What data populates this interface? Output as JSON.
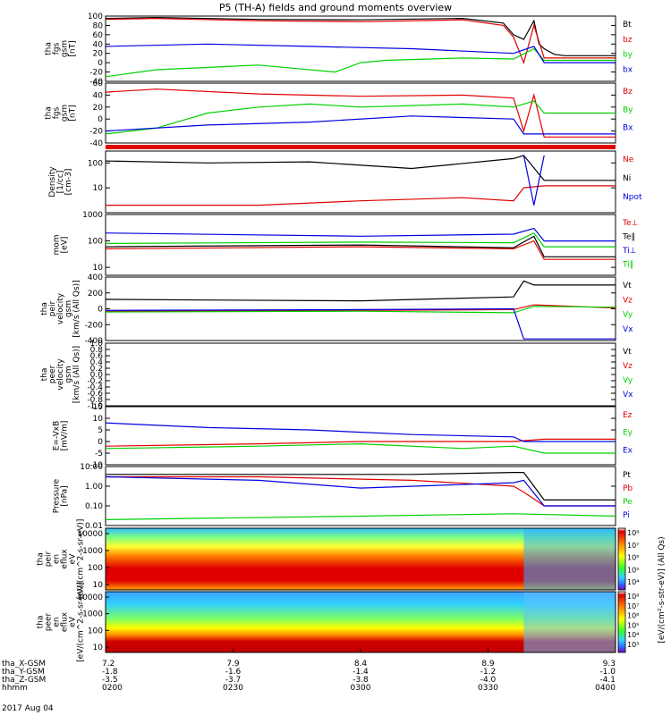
{
  "title": "P5 (TH-A) fields and ground moments overview",
  "date_label": "2017 Aug 04",
  "ephemeris": {
    "rows": [
      {
        "label": "tha_X-GSM",
        "values": [
          "7.2",
          "7.9",
          "8.4",
          "8.9",
          "9.3"
        ]
      },
      {
        "label": "tha_Y-GSM",
        "values": [
          "-1.8",
          "-1.6",
          "-1.4",
          "-1.2",
          "-1.0"
        ]
      },
      {
        "label": "tha_Z-GSM",
        "values": [
          "-3.5",
          "-3.7",
          "-3.8",
          "-4.0",
          "-4.1"
        ]
      },
      {
        "label": "hhmm",
        "values": [
          "0200",
          "0230",
          "0300",
          "0330",
          "0400"
        ]
      }
    ]
  },
  "colors": {
    "black": "#000000",
    "red": "#e00000",
    "green": "#00d000",
    "blue": "#0000e0"
  },
  "colorbar": {
    "label": "[eV/(cm^2-s-str-eV)] (All Qs)",
    "upper_ticks": [
      "10^8",
      "10^7",
      "10^6",
      "10^5",
      "10^4"
    ],
    "lower_ticks": [
      "10^8",
      "10^7",
      "10^6",
      "10^5",
      "10^4",
      "10^3"
    ]
  },
  "chart_data": [
    {
      "type": "line",
      "id": "fgs_gsm",
      "ylabel": [
        "tha",
        "fgs",
        "gsm",
        "[nT]"
      ],
      "ylim": [
        -40,
        100
      ],
      "yticks": [
        "100",
        "80",
        "60",
        "40",
        "20",
        "0",
        "-20",
        "-40"
      ],
      "series": [
        {
          "name": "Bt",
          "color": "black",
          "x": [
            0,
            0.1,
            0.3,
            0.5,
            0.7,
            0.78,
            0.8,
            0.82,
            0.84,
            0.85,
            0.86,
            0.88,
            0.9,
            1
          ],
          "y": [
            95,
            97,
            93,
            92,
            95,
            85,
            60,
            50,
            90,
            40,
            30,
            18,
            15,
            15
          ]
        },
        {
          "name": "bz",
          "color": "red",
          "x": [
            0,
            0.1,
            0.3,
            0.5,
            0.7,
            0.78,
            0.8,
            0.82,
            0.84,
            0.86,
            1
          ],
          "y": [
            93,
            95,
            90,
            88,
            92,
            80,
            55,
            0,
            80,
            10,
            10
          ]
        },
        {
          "name": "by",
          "color": "green",
          "x": [
            0,
            0.1,
            0.3,
            0.45,
            0.5,
            0.55,
            0.7,
            0.8,
            0.84,
            0.86,
            1
          ],
          "y": [
            -30,
            -15,
            -5,
            -20,
            0,
            5,
            10,
            8,
            30,
            5,
            5
          ]
        },
        {
          "name": "bx",
          "color": "blue",
          "x": [
            0,
            0.2,
            0.4,
            0.6,
            0.8,
            0.84,
            0.86,
            1
          ],
          "y": [
            35,
            40,
            35,
            30,
            20,
            35,
            0,
            0
          ]
        }
      ]
    },
    {
      "type": "line",
      "id": "fgs_gsm2",
      "ylabel": [
        "tha",
        "fgs",
        "gsm",
        "[nT]"
      ],
      "ylim": [
        -40,
        60
      ],
      "yticks": [
        "60",
        "40",
        "20",
        "0",
        "-20",
        "-40"
      ],
      "series": [
        {
          "name": "Bz",
          "color": "red",
          "x": [
            0,
            0.1,
            0.3,
            0.5,
            0.7,
            0.8,
            0.82,
            0.84,
            0.86,
            1
          ],
          "y": [
            45,
            50,
            42,
            38,
            40,
            35,
            -20,
            40,
            -30,
            -30
          ]
        },
        {
          "name": "By",
          "color": "green",
          "x": [
            0,
            0.1,
            0.2,
            0.3,
            0.4,
            0.5,
            0.7,
            0.8,
            0.84,
            0.86,
            1
          ],
          "y": [
            -25,
            -15,
            10,
            20,
            25,
            20,
            25,
            20,
            30,
            10,
            10
          ]
        },
        {
          "name": "Bx",
          "color": "blue",
          "x": [
            0,
            0.2,
            0.4,
            0.6,
            0.8,
            0.82,
            0.86,
            1
          ],
          "y": [
            -20,
            -10,
            -5,
            5,
            0,
            -25,
            -25,
            -25
          ]
        }
      ]
    },
    {
      "type": "line",
      "id": "density",
      "ylabel": [
        "Density",
        "[1/cc]",
        "[cm-3]"
      ],
      "scale": "log",
      "ylim": [
        1,
        300
      ],
      "yticks": [
        "100",
        "10"
      ],
      "series": [
        {
          "name": "Ne",
          "color": "red",
          "x": [
            0,
            0.3,
            0.5,
            0.7,
            0.8,
            0.82,
            0.86,
            1
          ],
          "y": [
            2,
            2,
            3,
            4,
            3,
            10,
            12,
            12
          ]
        },
        {
          "name": "Ni",
          "color": "black",
          "x": [
            0,
            0.2,
            0.4,
            0.6,
            0.8,
            0.82,
            0.86,
            1
          ],
          "y": [
            120,
            100,
            110,
            60,
            150,
            200,
            20,
            20
          ]
        },
        {
          "name": "Npot",
          "color": "blue",
          "x": [
            0.82,
            0.84,
            0.86
          ],
          "y": [
            200,
            2,
            200
          ]
        }
      ]
    },
    {
      "type": "line",
      "id": "temperature",
      "ylabel": [
        "mom",
        "[eV]"
      ],
      "scale": "log",
      "ylim": [
        5,
        1000
      ],
      "yticks": [
        "1000",
        "100",
        "10"
      ],
      "series": [
        {
          "name": "Te⊥",
          "color": "red",
          "x": [
            0,
            0.5,
            0.8,
            0.84,
            0.86,
            1
          ],
          "y": [
            50,
            60,
            50,
            100,
            20,
            20
          ]
        },
        {
          "name": "Te‖",
          "color": "black",
          "x": [
            0,
            0.5,
            0.8,
            0.84,
            0.86,
            1
          ],
          "y": [
            60,
            70,
            55,
            150,
            25,
            25
          ]
        },
        {
          "name": "Ti⊥",
          "color": "blue",
          "x": [
            0,
            0.5,
            0.8,
            0.84,
            0.86,
            1
          ],
          "y": [
            200,
            150,
            180,
            300,
            100,
            100
          ]
        },
        {
          "name": "Ti‖",
          "color": "green",
          "x": [
            0,
            0.5,
            0.8,
            0.84,
            0.86,
            1
          ],
          "y": [
            80,
            90,
            85,
            200,
            60,
            60
          ]
        }
      ]
    },
    {
      "type": "line",
      "id": "peir_velocity",
      "ylabel": [
        "tha",
        "peir",
        "velocity",
        "gsm",
        "[km/s (All Qs)]"
      ],
      "ylim": [
        -400,
        400
      ],
      "yticks": [
        "400",
        "200",
        "0",
        "-200",
        "-400"
      ],
      "series": [
        {
          "name": "Vt",
          "color": "black",
          "x": [
            0,
            0.2,
            0.5,
            0.8,
            0.82,
            0.84,
            1
          ],
          "y": [
            120,
            110,
            100,
            150,
            350,
            300,
            300
          ]
        },
        {
          "name": "Vz",
          "color": "red",
          "x": [
            0,
            0.5,
            0.8,
            0.84,
            1
          ],
          "y": [
            -30,
            -20,
            -10,
            50,
            10
          ]
        },
        {
          "name": "Vy",
          "color": "green",
          "x": [
            0,
            0.5,
            0.8,
            0.84,
            1
          ],
          "y": [
            -40,
            -30,
            -50,
            30,
            20
          ]
        },
        {
          "name": "Vx",
          "color": "blue",
          "x": [
            0,
            0.5,
            0.8,
            0.82,
            1
          ],
          "y": [
            -20,
            -10,
            0,
            -380,
            -380
          ]
        }
      ]
    },
    {
      "type": "line",
      "id": "peer_velocity",
      "ylabel": [
        "tha",
        "peer",
        "velocity",
        "gsm",
        "[km/s (All Qs)]"
      ],
      "ylim": [
        -1,
        1
      ],
      "yticks": [
        "1.0",
        "0.8",
        "0.6",
        "0.4",
        "0.2",
        "0.0",
        "-0.2",
        "-0.4",
        "-0.6",
        "-0.8",
        "-1.0"
      ],
      "series": [
        {
          "name": "Vt",
          "color": "black",
          "x": [],
          "y": []
        },
        {
          "name": "Vz",
          "color": "red",
          "x": [],
          "y": []
        },
        {
          "name": "Vy",
          "color": "green",
          "x": [],
          "y": []
        },
        {
          "name": "Vx",
          "color": "blue",
          "x": [],
          "y": []
        }
      ]
    },
    {
      "type": "line",
      "id": "efield",
      "ylabel": [
        "E=-VxB",
        "[mV/m]"
      ],
      "ylim": [
        -10,
        15
      ],
      "yticks": [
        "15",
        "10",
        "5",
        "0",
        "-5",
        "-10"
      ],
      "series": [
        {
          "name": "Ez",
          "color": "red",
          "x": [
            0,
            0.3,
            0.5,
            0.7,
            0.8,
            0.86,
            1
          ],
          "y": [
            -2,
            -1,
            0,
            0,
            0,
            1,
            1
          ]
        },
        {
          "name": "Ey",
          "color": "green",
          "x": [
            0,
            0.3,
            0.5,
            0.7,
            0.8,
            0.86,
            1
          ],
          "y": [
            -3,
            -2,
            -1,
            -3,
            -2,
            -5,
            -5
          ]
        },
        {
          "name": "Ex",
          "color": "blue",
          "x": [
            0,
            0.2,
            0.4,
            0.6,
            0.8,
            0.82,
            0.86,
            1
          ],
          "y": [
            8,
            6,
            5,
            3,
            2,
            0,
            0,
            0
          ]
        }
      ]
    },
    {
      "type": "line",
      "id": "pressure",
      "ylabel": [
        "Pressure",
        "[nPa]"
      ],
      "scale": "log",
      "ylim": [
        0.01,
        10
      ],
      "yticks": [
        "10.00",
        "1.00",
        "0.10",
        "0.01"
      ],
      "series": [
        {
          "name": "Pt",
          "color": "black",
          "x": [
            0,
            0.3,
            0.6,
            0.8,
            0.82,
            0.86,
            1
          ],
          "y": [
            4,
            4,
            4,
            5,
            5,
            0.2,
            0.2
          ]
        },
        {
          "name": "Pb",
          "color": "red",
          "x": [
            0,
            0.3,
            0.6,
            0.8,
            0.82,
            0.86,
            1
          ],
          "y": [
            3,
            3,
            2,
            1,
            0.5,
            0.1,
            0.1
          ]
        },
        {
          "name": "Pe",
          "color": "green",
          "x": [
            0,
            0.5,
            0.8,
            1
          ],
          "y": [
            0.02,
            0.03,
            0.04,
            0.03
          ]
        },
        {
          "name": "Pi",
          "color": "blue",
          "x": [
            0,
            0.3,
            0.5,
            0.8,
            0.82,
            0.86,
            1
          ],
          "y": [
            3,
            2,
            0.8,
            1.5,
            2,
            0.1,
            0.1
          ]
        }
      ]
    },
    {
      "type": "heatmap",
      "id": "peir_spectrum",
      "ylabel": [
        "tha",
        "peir",
        "en",
        "eflux",
        "eV",
        "[eV/(cm^2-s-sr-eV)]"
      ],
      "yticks": [
        "10000",
        "1000",
        "100",
        "10"
      ]
    },
    {
      "type": "heatmap",
      "id": "peer_spectrum",
      "ylabel": [
        "tha",
        "peer",
        "en",
        "eflux",
        "eV",
        "[eV/(cm^2-s-sr-eV)]"
      ],
      "yticks": [
        "10000",
        "1000",
        "100",
        "10"
      ]
    }
  ]
}
